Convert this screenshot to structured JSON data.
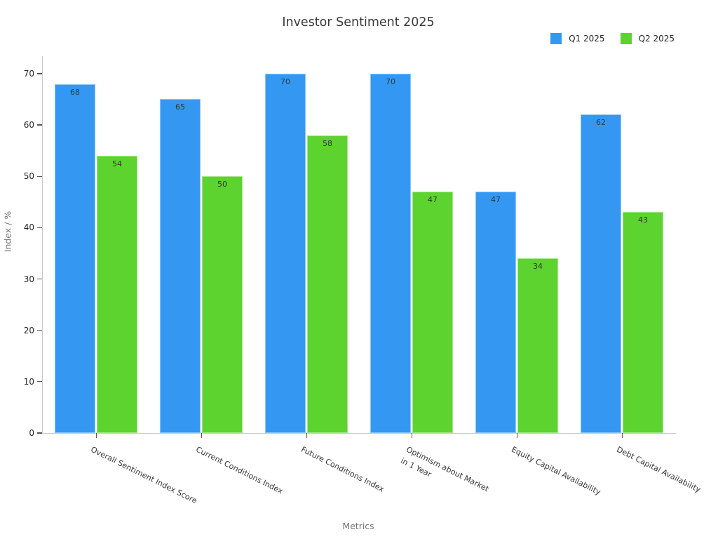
{
  "title": "Investor Sentiment 2025",
  "legend": {
    "items": [
      {
        "label": "Q1 2025",
        "color": "#3498f3"
      },
      {
        "label": "Q2 2025",
        "color": "#5cd32e"
      }
    ]
  },
  "axes": {
    "y_label": "Index / %",
    "x_label": "Metrics",
    "y_ticks": [
      0,
      10,
      20,
      30,
      40,
      50,
      60,
      70
    ]
  },
  "chart_data": {
    "type": "bar",
    "title": "Investor Sentiment 2025",
    "xlabel": "Metrics",
    "ylabel": "Index / %",
    "categories": [
      "Overall Sentiment Index Score",
      "Current Conditions Index",
      "Future Conditions Index",
      "Optimism about Market\nin 1 Year",
      "Equity Capital Availability",
      "Debt Capital Availability"
    ],
    "series": [
      {
        "name": "Q1 2025",
        "color": "#3498f3",
        "values": [
          68,
          65,
          70,
          70,
          47,
          62
        ]
      },
      {
        "name": "Q2 2025",
        "color": "#5cd32e",
        "values": [
          54,
          50,
          58,
          47,
          34,
          43
        ]
      }
    ],
    "bar_value_labels": true,
    "yticks": [
      0,
      10,
      20,
      30,
      40,
      50,
      60,
      70
    ],
    "ylim": [
      0,
      73.4
    ],
    "grid": false,
    "legend_position": "top-right",
    "colors": {
      "text_dark": "#363636",
      "text_muted": "#757575",
      "spine": "#c9c9c9",
      "tick": "#565656"
    }
  }
}
